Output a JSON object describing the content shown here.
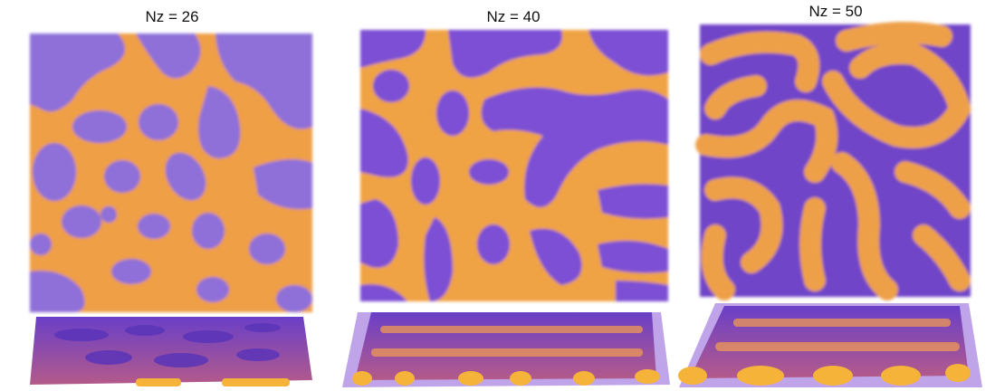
{
  "panels": [
    {
      "label": "Nz = 26"
    },
    {
      "label": "Nz = 40"
    },
    {
      "label": "Nz = 50"
    }
  ]
}
